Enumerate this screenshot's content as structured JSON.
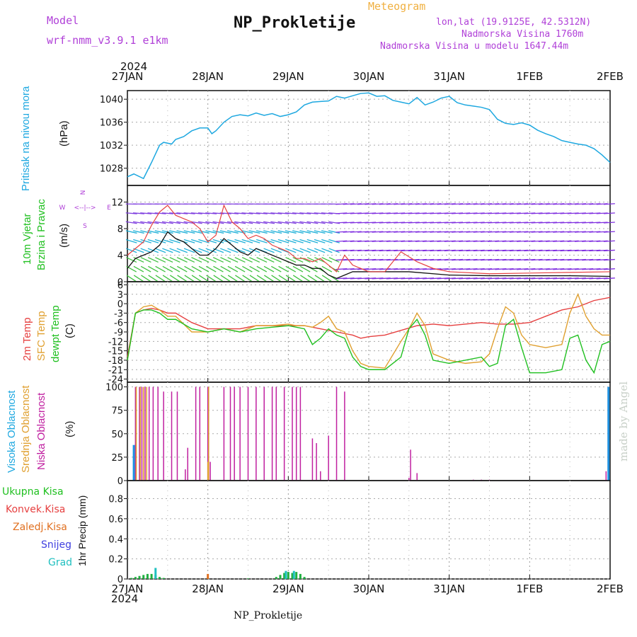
{
  "header": {
    "model_label": "Model",
    "model_name": "wrf-nmm_v3.9.1  e1km",
    "title": "NP_Prokletije",
    "subtitle": "Meteogram",
    "lonlat": "lon,lat (19.9125E, 42.5312N)",
    "altitude": "Nadmorska Visina 1760m",
    "model_altitude": "Nadmorska Visina u modelu 1647.44m",
    "footer": "NP_Prokletije",
    "watermark": "made by Angel",
    "year": "2024"
  },
  "time_axis": {
    "labels": [
      "27JAN",
      "28JAN",
      "29JAN",
      "30JAN",
      "31JAN",
      "1FEB",
      "2FEB"
    ],
    "start": "2024-01-27T00:00",
    "end": "2024-02-02T00:00"
  },
  "panel_labels": {
    "pressure": [
      "Pritisak na nivou mora",
      "(hPa)"
    ],
    "wind": [
      "10m Vjetar",
      "Brzina i Pravac",
      "(m/s)"
    ],
    "wind_compass": [
      "N",
      "E",
      "S",
      "W",
      "<--|-->"
    ],
    "temp": [
      "2m Temp",
      "SFC Temp",
      "dewpt Temp",
      "(C)"
    ],
    "cloud": [
      "Visoka Oblacnost",
      "Srednja Oblacnost",
      "Niska Oblacnost",
      "(%)"
    ],
    "precip_legend": [
      "Ukupna Kisa",
      "Konvek.Kisa",
      "Zaledj.Kisa",
      "Snijeg",
      "Grad"
    ],
    "precip_unit": "1hr Precip (mm)"
  },
  "colors": {
    "pressure": "#1ea8e0",
    "wind_speed": "#111111",
    "wind_gust": "#e64040",
    "temp2m": "#e64040",
    "sfc_temp": "#e0a030",
    "dewpt": "#20c020",
    "cloud_high": "#1e90e0",
    "cloud_mid": "#e0a030",
    "cloud_low": "#c020a0",
    "precip_total": "#20b040",
    "precip_conv": "#e64040",
    "precip_frozen": "#e07020",
    "snow": "#4040e0",
    "hail": "#20c0c0",
    "label_purple": "#b040d8"
  },
  "chart_data": [
    {
      "type": "line",
      "name_key": "pressure",
      "ylabel": "(hPa)",
      "ylim": [
        1025,
        1041.5
      ],
      "yticks": [
        1028,
        1032,
        1036,
        1040
      ],
      "grid": true,
      "series": [
        {
          "x_days": [
            0,
            0.08,
            0.2,
            0.3,
            0.4,
            0.45,
            0.55,
            0.6,
            0.7,
            0.8,
            0.9,
            1.0,
            1.05,
            1.1,
            1.2,
            1.3,
            1.4,
            1.5,
            1.6,
            1.7,
            1.8,
            1.9,
            2.0,
            2.1,
            2.2,
            2.3,
            2.4,
            2.5,
            2.6,
            2.7,
            2.8,
            2.9,
            3.0,
            3.1,
            3.2,
            3.3,
            3.4,
            3.5,
            3.6,
            3.7,
            3.8,
            3.9,
            4.0,
            4.1,
            4.2,
            4.3,
            4.4,
            4.5,
            4.6,
            4.7,
            4.8,
            4.9,
            5.0,
            5.1,
            5.2,
            5.3,
            5.4,
            5.5,
            5.6,
            5.7,
            5.8,
            5.9,
            6.0
          ],
          "values": [
            1026.5,
            1027,
            1026.2,
            1029,
            1032,
            1032.5,
            1032.2,
            1033,
            1033.5,
            1034.5,
            1035,
            1035,
            1034,
            1034.5,
            1036,
            1037,
            1037.3,
            1037.1,
            1037.6,
            1037.2,
            1037.5,
            1037,
            1037.3,
            1037.8,
            1039,
            1039.5,
            1039.6,
            1039.7,
            1040.5,
            1040.2,
            1040.6,
            1041,
            1041.1,
            1040.5,
            1040.6,
            1039.8,
            1039.5,
            1039.2,
            1040.3,
            1039,
            1039.5,
            1040.2,
            1040.5,
            1039.4,
            1039,
            1038.8,
            1038.6,
            1038.2,
            1036.5,
            1035.8,
            1035.6,
            1035.9,
            1035.5,
            1034.6,
            1034,
            1033.5,
            1032.8,
            1032.5,
            1032.2,
            1032,
            1031.4,
            1030.3,
            1029
          ]
        }
      ]
    },
    {
      "type": "line",
      "name_key": "wind",
      "ylabel": "(m/s)",
      "ylim": [
        0,
        14.5
      ],
      "yticks": [
        0,
        4,
        8,
        12
      ],
      "grid": true,
      "series": [
        {
          "x_days": [
            0,
            0.1,
            0.2,
            0.3,
            0.4,
            0.5,
            0.6,
            0.7,
            0.8,
            0.9,
            1.0,
            1.1,
            1.2,
            1.3,
            1.4,
            1.5,
            1.6,
            1.7,
            1.8,
            1.9,
            2.0,
            2.1,
            2.2,
            2.3,
            2.4,
            2.5,
            2.6,
            2.7,
            2.8,
            2.9,
            3.0,
            3.5,
            4.0,
            4.5,
            5.0,
            5.5,
            6.0
          ],
          "values": [
            2,
            3.5,
            4,
            4.5,
            5.5,
            7.5,
            6.5,
            6,
            5,
            4,
            4,
            5,
            6.5,
            5.5,
            4.5,
            4,
            5,
            4.5,
            4,
            3.5,
            3,
            2.5,
            2.5,
            2,
            2,
            1,
            0.5,
            1,
            1.5,
            1.5,
            1.5,
            1.5,
            1,
            0.9,
            0.9,
            0.9,
            0.8
          ]
        },
        {
          "x_days": [
            0,
            0.1,
            0.2,
            0.3,
            0.4,
            0.5,
            0.6,
            0.7,
            0.8,
            0.9,
            1.0,
            1.1,
            1.2,
            1.3,
            1.4,
            1.5,
            1.6,
            1.7,
            1.8,
            1.9,
            2.0,
            2.1,
            2.2,
            2.3,
            2.4,
            2.5,
            2.6,
            2.7,
            2.8,
            2.9,
            3.0,
            3.2,
            3.4,
            3.6,
            3.8,
            4.0,
            4.5,
            5.0,
            5.5,
            6.0
          ],
          "values": [
            4,
            5,
            6,
            8.5,
            10.5,
            11.5,
            10,
            9.5,
            9,
            8,
            6,
            7,
            11.5,
            9,
            8,
            6.5,
            7,
            6.5,
            5.5,
            5,
            4.5,
            3.5,
            3.5,
            3,
            3.5,
            2.5,
            1.5,
            4,
            2.5,
            2,
            1.5,
            1.5,
            4.5,
            3,
            2,
            1.5,
            1.2,
            1.3,
            1.4,
            1.5
          ]
        }
      ]
    },
    {
      "type": "line",
      "name_key": "temp",
      "ylabel": "(C)",
      "ylim": [
        -25,
        7
      ],
      "yticks": [
        6,
        3,
        0,
        -3,
        -6,
        -9,
        -12,
        -15,
        -18,
        -21,
        -24
      ],
      "grid": true,
      "series": [
        {
          "name_key": "temp2m",
          "x_days": [
            0,
            0.1,
            0.2,
            0.3,
            0.4,
            0.5,
            0.6,
            0.8,
            1.0,
            1.2,
            1.4,
            1.6,
            1.8,
            2.0,
            2.2,
            2.4,
            2.6,
            2.8,
            2.9,
            3.0,
            3.2,
            3.4,
            3.6,
            3.8,
            4.0,
            4.2,
            4.4,
            4.6,
            4.8,
            5.0,
            5.2,
            5.4,
            5.6,
            5.8,
            6.0
          ],
          "values": [
            -17,
            -3,
            -2,
            -1.5,
            -2,
            -3,
            -3,
            -6,
            -8,
            -8,
            -8,
            -7,
            -7,
            -7,
            -7,
            -8,
            -9,
            -10,
            -11,
            -10.5,
            -10,
            -8.5,
            -7,
            -6.5,
            -7,
            -6.5,
            -6,
            -6.5,
            -6.5,
            -6,
            -4,
            -2,
            -1,
            1,
            2
          ]
        },
        {
          "name_key": "sfc_temp",
          "x_days": [
            0,
            0.1,
            0.2,
            0.3,
            0.4,
            0.5,
            0.6,
            0.8,
            1.0,
            1.2,
            1.4,
            1.6,
            1.8,
            2.0,
            2.1,
            2.2,
            2.3,
            2.4,
            2.5,
            2.6,
            2.7,
            2.8,
            2.9,
            3.0,
            3.2,
            3.4,
            3.5,
            3.6,
            3.7,
            3.8,
            4.0,
            4.2,
            4.4,
            4.5,
            4.6,
            4.7,
            4.8,
            4.9,
            5.0,
            5.2,
            5.4,
            5.5,
            5.6,
            5.7,
            5.8,
            5.9,
            6.0
          ],
          "values": [
            -18,
            -3,
            -1,
            -0.5,
            -2,
            -4,
            -4,
            -9,
            -9,
            -8,
            -9,
            -7,
            -7,
            -6.5,
            -7,
            -7,
            -7.5,
            -6,
            -4,
            -8,
            -9,
            -15,
            -19,
            -20,
            -20.5,
            -12,
            -8,
            -3,
            -7,
            -16,
            -18,
            -19,
            -18.5,
            -16,
            -8,
            -1,
            -3,
            -10,
            -13,
            -14,
            -13,
            -3,
            3,
            -4,
            -8,
            -10,
            -10
          ]
        },
        {
          "name_key": "dewpt",
          "x_days": [
            0,
            0.1,
            0.2,
            0.3,
            0.4,
            0.5,
            0.6,
            0.8,
            1.0,
            1.2,
            1.4,
            1.6,
            1.8,
            2.0,
            2.1,
            2.2,
            2.3,
            2.4,
            2.5,
            2.6,
            2.7,
            2.8,
            2.9,
            3.0,
            3.2,
            3.4,
            3.5,
            3.6,
            3.7,
            3.8,
            4.0,
            4.2,
            4.4,
            4.5,
            4.6,
            4.7,
            4.8,
            4.9,
            5.0,
            5.2,
            5.4,
            5.5,
            5.6,
            5.7,
            5.8,
            5.9,
            6.0
          ],
          "values": [
            -18,
            -3,
            -2,
            -2,
            -3,
            -5,
            -5,
            -8,
            -9,
            -8,
            -9,
            -8,
            -7.5,
            -7,
            -7.5,
            -8,
            -13,
            -11,
            -8,
            -10,
            -11,
            -17,
            -20,
            -21,
            -21,
            -17,
            -8,
            -5,
            -10,
            -18,
            -19,
            -18,
            -17,
            -20,
            -19,
            -7,
            -5,
            -14,
            -22,
            -22,
            -21,
            -11,
            -10,
            -18,
            -22,
            -13,
            -12
          ]
        }
      ]
    },
    {
      "type": "bar",
      "name_key": "cloud",
      "ylabel": "(%)",
      "ylim": [
        0,
        105
      ],
      "yticks": [
        0,
        25,
        50,
        75,
        100
      ],
      "grid": true,
      "series": [
        {
          "name_key": "cloud_low",
          "x_days": [
            0.1,
            0.15,
            0.18,
            0.22,
            0.27,
            0.32,
            0.38,
            0.45,
            0.55,
            0.62,
            0.72,
            0.75,
            0.85,
            0.9,
            1.0,
            1.03,
            1.2,
            1.28,
            1.33,
            1.4,
            1.5,
            1.6,
            1.7,
            1.8,
            1.85,
            1.95,
            2.05,
            2.1,
            2.15,
            2.3,
            2.35,
            2.4,
            2.5,
            2.6,
            2.7,
            3.5,
            3.52,
            3.6,
            4.3,
            4.4,
            4.5,
            5.95
          ],
          "values": [
            100,
            100,
            100,
            100,
            100,
            100,
            100,
            95,
            95,
            95,
            12,
            35,
            100,
            100,
            100,
            20,
            100,
            100,
            100,
            100,
            100,
            100,
            100,
            100,
            100,
            100,
            100,
            100,
            100,
            45,
            40,
            10,
            48,
            100,
            95,
            3,
            33,
            8,
            1,
            1,
            1,
            10
          ]
        },
        {
          "name_key": "cloud_mid",
          "x_days": [
            0.11,
            0.16,
            0.2,
            0.24,
            1.0,
            1.01
          ],
          "values": [
            100,
            100,
            100,
            100,
            20,
            100
          ]
        },
        {
          "name_key": "cloud_high",
          "x_days": [
            0.08,
            5.98
          ],
          "values": [
            38,
            100
          ]
        }
      ]
    },
    {
      "type": "bar",
      "name_key": "precip",
      "ylabel": "1hr Precip (mm)",
      "ylim": [
        0,
        0.98
      ],
      "yticks": [
        0,
        0.2,
        0.4,
        0.6,
        0.8
      ],
      "grid": true,
      "series": [
        {
          "name_key": "precip_total",
          "x_days": [
            0.05,
            0.1,
            0.15,
            0.2,
            0.25,
            0.3,
            0.35,
            0.4,
            0.45,
            1.0,
            1.5,
            1.85,
            1.9,
            1.95,
            2.0,
            2.05,
            2.1,
            2.15,
            2.2
          ],
          "values": [
            0.01,
            0.02,
            0.03,
            0.04,
            0.05,
            0.05,
            0.04,
            0.02,
            0.01,
            0.01,
            0.005,
            0.02,
            0.04,
            0.06,
            0.07,
            0.06,
            0.07,
            0.05,
            0.02
          ]
        },
        {
          "name_key": "hail",
          "x_days": [
            0.35,
            1.97,
            2.07
          ],
          "values": [
            0.11,
            0.08,
            0.08
          ]
        },
        {
          "name_key": "precip_frozen",
          "x_days": [
            1.0
          ],
          "values": [
            0.05
          ]
        }
      ]
    }
  ]
}
